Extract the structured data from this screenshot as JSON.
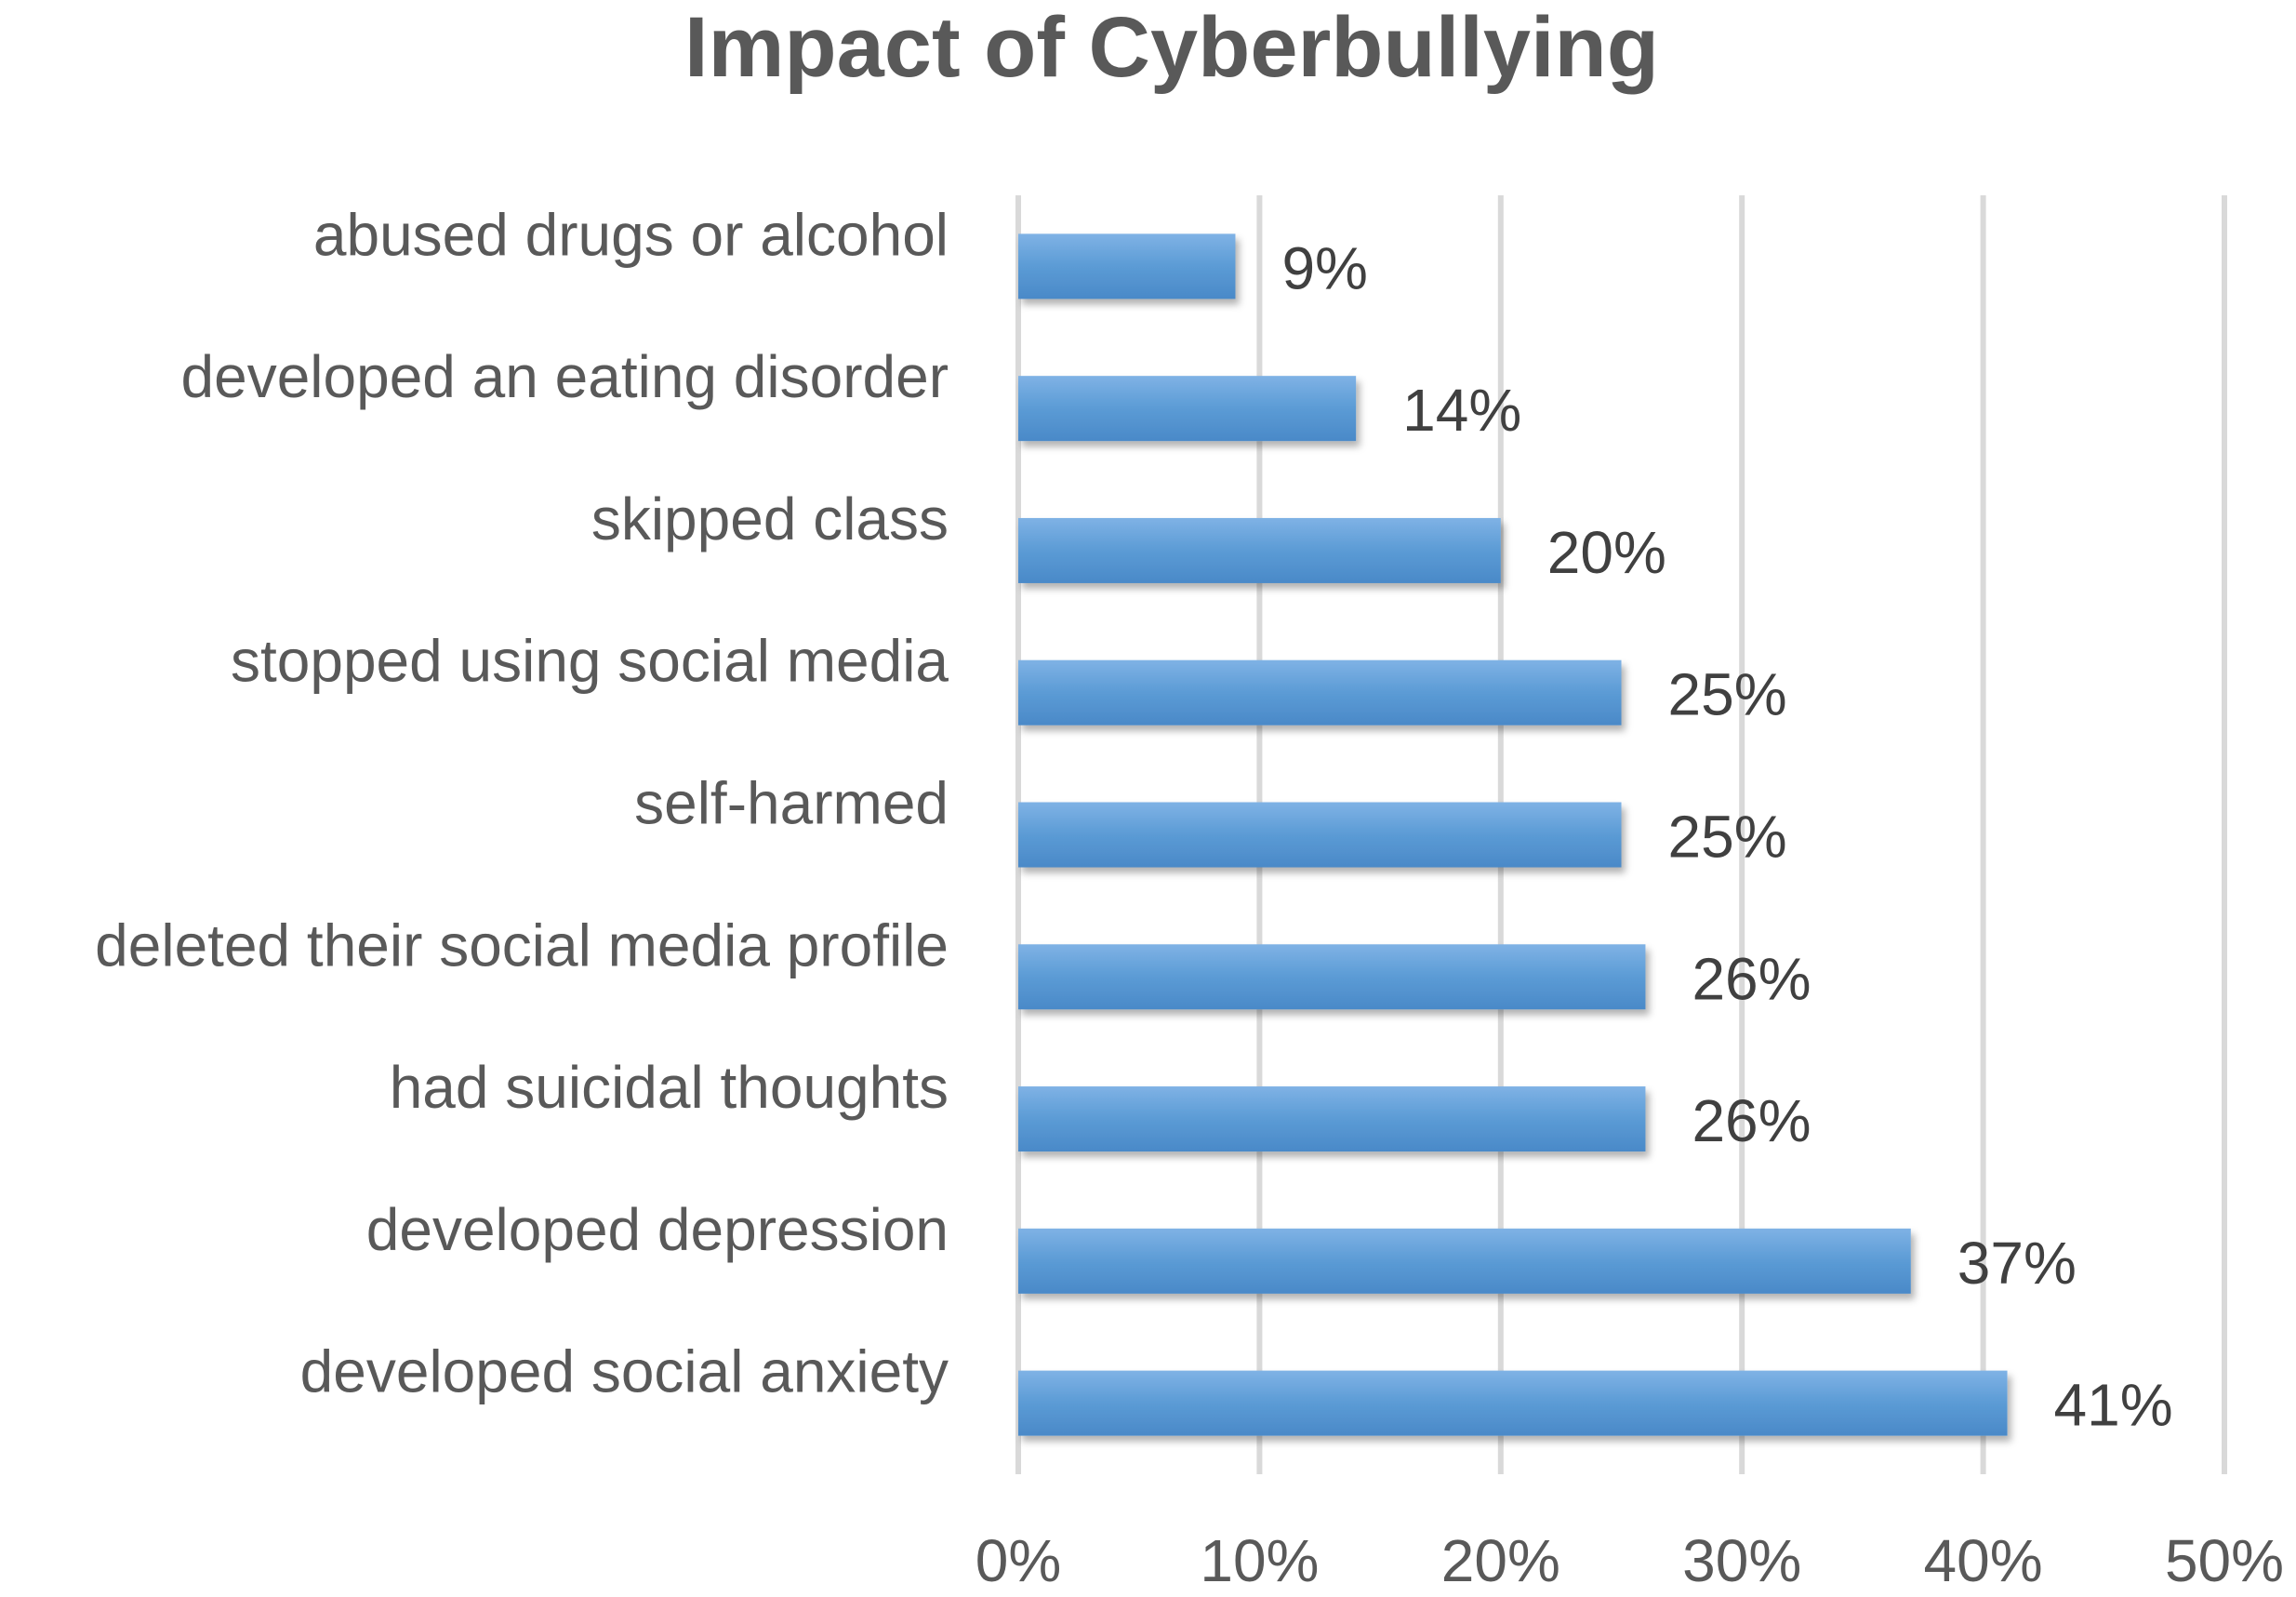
{
  "chart_data": {
    "type": "bar",
    "orientation": "horizontal",
    "title": "Impact of Cyberbullying",
    "categories": [
      "abused drugs or alcohol",
      "developed an eating disorder",
      "skipped class",
      "stopped using social media",
      "self-harmed",
      "deleted their social media profile",
      "had suicidal thoughts",
      "developed depression",
      "developed social anxiety"
    ],
    "values": [
      9,
      14,
      20,
      25,
      25,
      26,
      26,
      37,
      41
    ],
    "value_labels": [
      "9%",
      "14%",
      "20%",
      "25%",
      "25%",
      "26%",
      "26%",
      "37%",
      "41%"
    ],
    "xlim": [
      0,
      50
    ],
    "x_ticks": [
      0,
      10,
      20,
      30,
      40,
      50
    ],
    "x_tick_labels": [
      "0%",
      "10%",
      "20%",
      "30%",
      "40%",
      "50%"
    ],
    "xlabel": "",
    "ylabel": "",
    "grid": "vertical",
    "legend": "none",
    "bar_color": "#5b9bd5"
  }
}
